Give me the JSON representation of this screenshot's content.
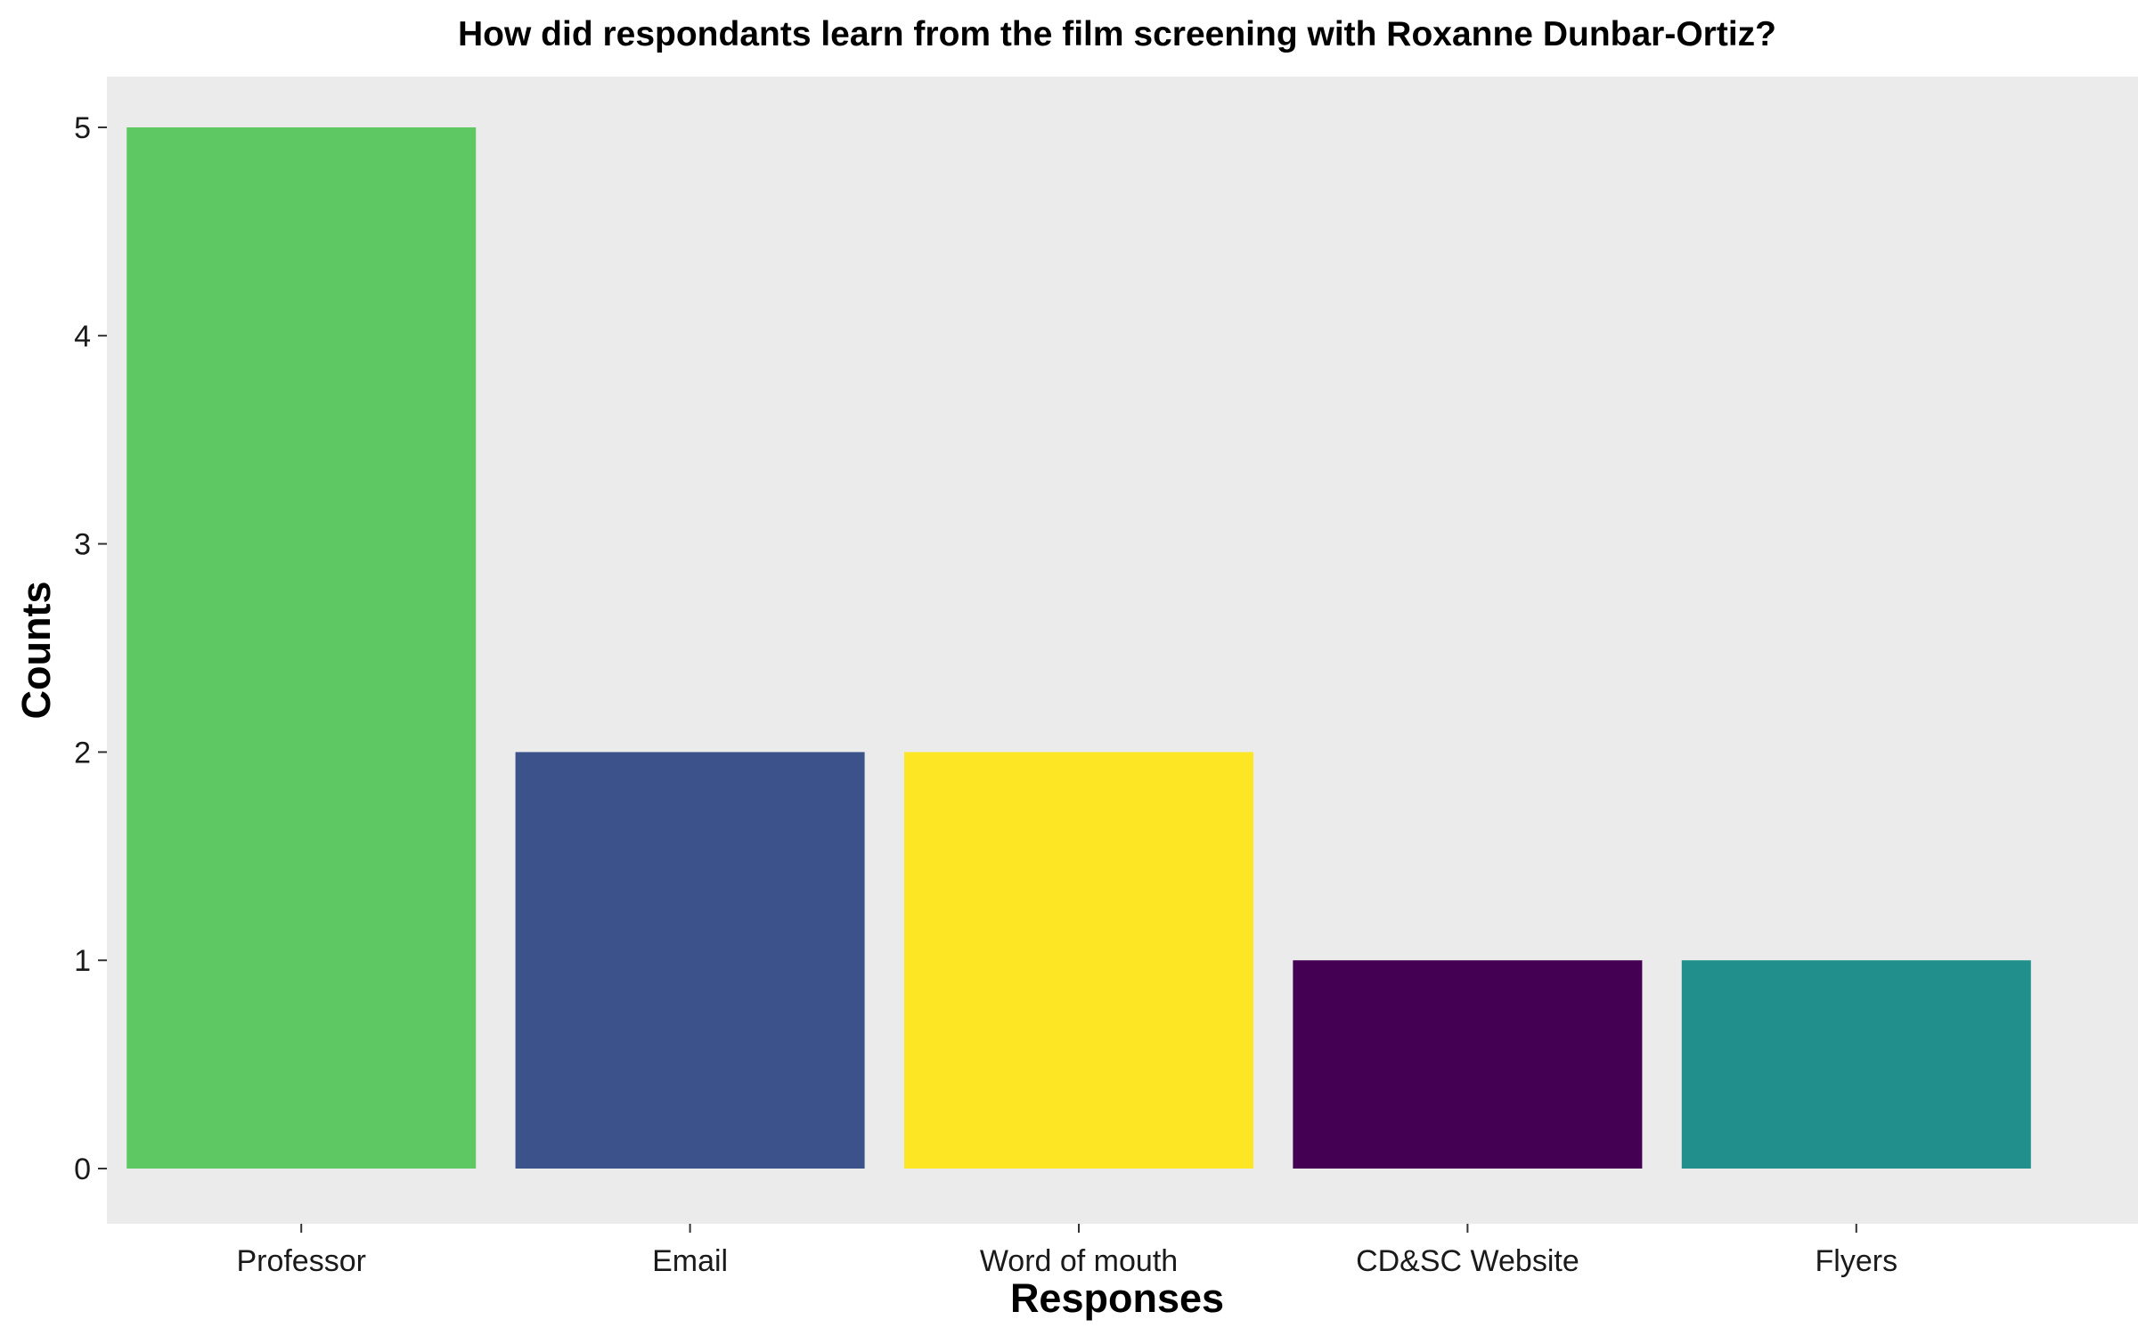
{
  "chart_data": {
    "type": "bar",
    "title": "How did respondants learn from the film screening with Roxanne Dunbar-Ortiz?",
    "xlabel": "Responses",
    "ylabel": "Counts",
    "categories": [
      "Professor",
      "Email",
      "Word of mouth",
      "CD&SC Website",
      "Flyers"
    ],
    "values": [
      5,
      2,
      2,
      1,
      1
    ],
    "colors": [
      "#5EC962",
      "#3B528B",
      "#FDE725",
      "#440154",
      "#21908C"
    ],
    "ylim": [
      0,
      5
    ],
    "yticks": [
      0,
      1,
      2,
      3,
      4,
      5
    ],
    "panel_background": "#EBEBEB",
    "grid": false,
    "legend": "none"
  }
}
